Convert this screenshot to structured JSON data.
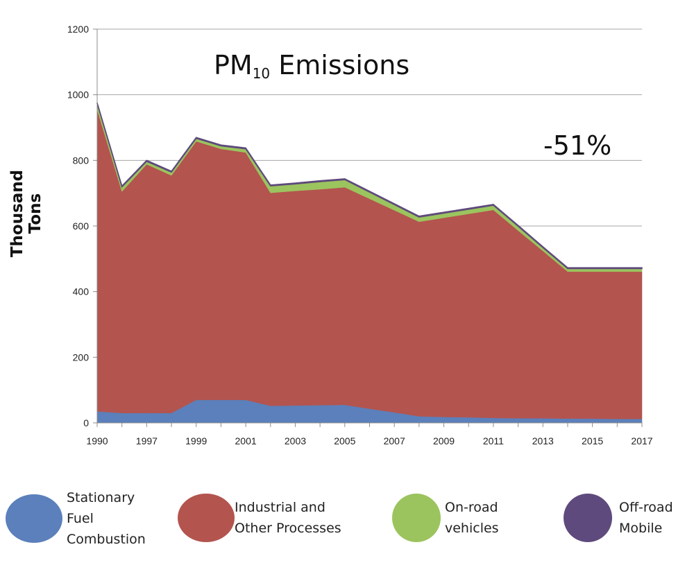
{
  "chart_data": {
    "type": "area",
    "stacked": true,
    "title": "PM10 Emissions",
    "title_parts": {
      "main": "PM",
      "subscript": "10",
      "rest": "Emissions"
    },
    "ylabel": "Thousand Tons",
    "xlabel": "",
    "annotation": "-51%",
    "ylim": [
      0,
      1200
    ],
    "yticks": [
      0,
      200,
      400,
      600,
      800,
      1000,
      1200
    ],
    "grid": true,
    "legend_placement": "bottom",
    "categories": [
      "1990",
      "1996",
      "1997",
      "1998",
      "1999",
      "2000",
      "2001",
      "2002",
      "2003",
      "2004",
      "2005",
      "2006",
      "2007",
      "2008",
      "2009",
      "2010",
      "2011",
      "2012",
      "2013",
      "2014",
      "2015",
      "2016",
      "2017"
    ],
    "xtick_labels": [
      "1990",
      "",
      "1997",
      "",
      "1999",
      "",
      "2001",
      "",
      "2003",
      "",
      "2005",
      "",
      "2007",
      "",
      "2009",
      "",
      "2011",
      "",
      "2013",
      "",
      "2015",
      "",
      "2017"
    ],
    "series": [
      {
        "name": "Stationary Fuel Combustion",
        "color": "#5b80bb",
        "values": [
          35,
          30,
          30,
          30,
          70,
          70,
          70,
          52,
          53,
          54,
          55,
          43,
          32,
          20,
          18,
          17,
          15,
          14,
          14,
          13,
          13,
          12,
          12
        ]
      },
      {
        "name": "Industrial and Other Processes",
        "color": "#b3544f",
        "values": [
          920,
          675,
          758,
          724,
          788,
          765,
          754,
          649,
          654,
          658,
          663,
          640,
          616,
          593,
          607,
          620,
          634,
          572,
          510,
          448,
          448,
          449,
          449
        ]
      },
      {
        "name": "On-road vehicles",
        "color": "#9bc45e",
        "values": [
          18,
          14,
          9,
          10,
          9,
          9,
          11,
          21,
          21,
          23,
          23,
          20,
          17,
          14,
          14,
          14,
          14,
          13,
          10,
          9,
          9,
          9,
          9
        ]
      },
      {
        "name": "Off-road Mobile",
        "color": "#5e4a7c",
        "values": [
          3,
          3,
          3,
          3,
          3,
          3,
          3,
          3,
          3,
          3,
          3,
          3,
          3,
          3,
          3,
          3,
          3,
          3,
          3,
          3,
          3,
          3,
          3
        ]
      }
    ]
  },
  "legend": [
    {
      "label": "Stationary\nFuel\nCombustion",
      "color": "#5b80bb"
    },
    {
      "label": "Industrial and\nOther Processes",
      "color": "#b3544f"
    },
    {
      "label": "On-road\nvehicles",
      "color": "#9bc45e"
    },
    {
      "label": "Off-road\nMobile",
      "color": "#5e4a7c"
    }
  ]
}
